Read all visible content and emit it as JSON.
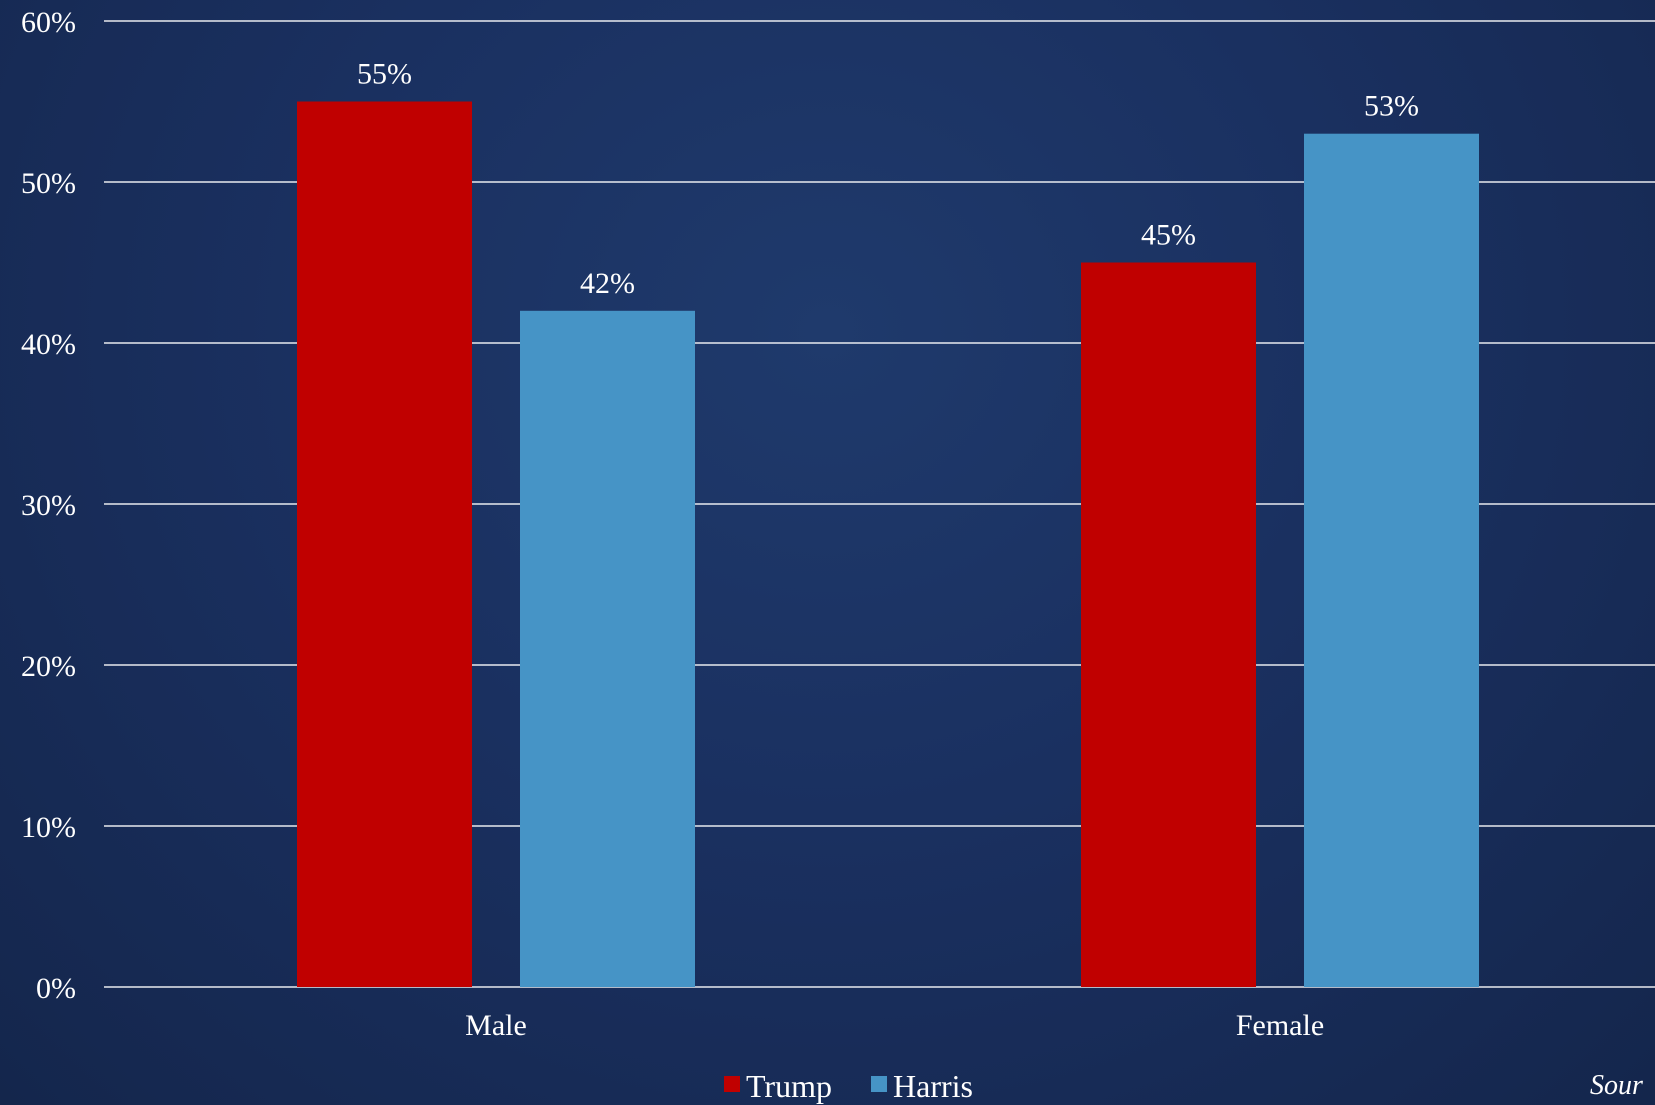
{
  "chart_data": {
    "type": "bar",
    "categories": [
      "Male",
      "Female"
    ],
    "series": [
      {
        "name": "Trump",
        "values": [
          55,
          45
        ],
        "color": "#c00000"
      },
      {
        "name": "Harris",
        "values": [
          42,
          53
        ],
        "color": "#4694c6"
      }
    ],
    "data_labels": [
      [
        "55%",
        "45%"
      ],
      [
        "42%",
        "53%"
      ]
    ],
    "ylim": [
      0,
      60
    ],
    "yticks": [
      0,
      10,
      20,
      30,
      40,
      50,
      60
    ],
    "ytick_labels": [
      "0%",
      "10%",
      "20%",
      "30%",
      "40%",
      "50%",
      "60%"
    ],
    "grid": true,
    "legend_position": "bottom",
    "gridline_color": "#ffffff",
    "source_text": "Sour"
  }
}
